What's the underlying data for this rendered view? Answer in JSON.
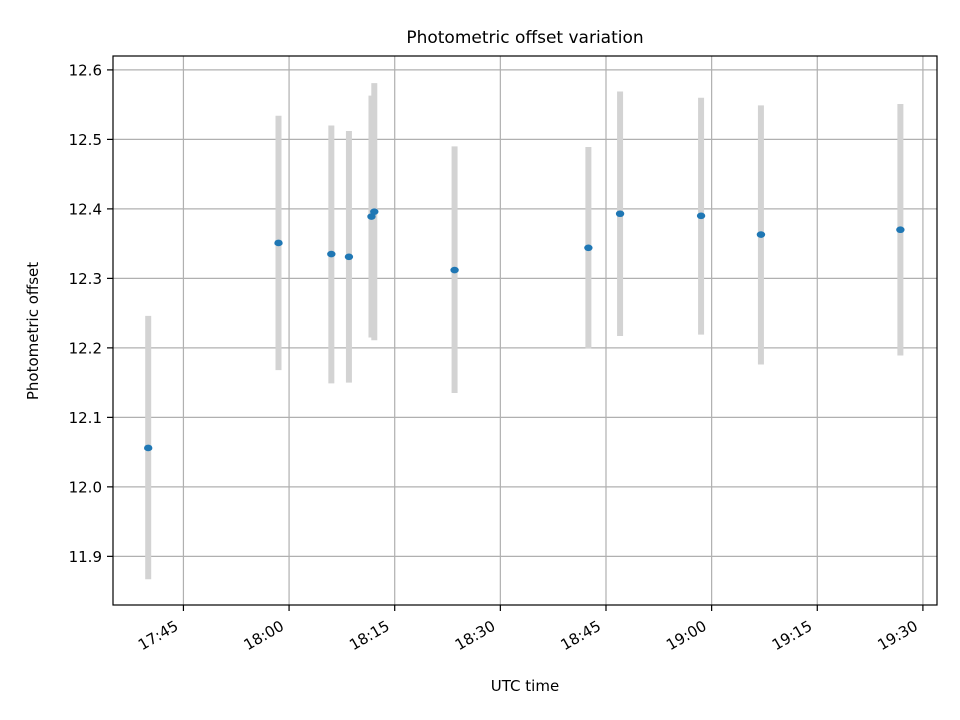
{
  "chart_data": {
    "type": "scatter",
    "title": "Photometric offset variation",
    "xlabel": "UTC time",
    "ylabel": "Photometric offset",
    "x_unit": "time of day (UTC)",
    "xlim": [
      "17:35",
      "19:32"
    ],
    "ylim": [
      11.83,
      12.62
    ],
    "xticks": [
      "17:45",
      "18:00",
      "18:15",
      "18:30",
      "18:45",
      "19:00",
      "19:15",
      "19:30"
    ],
    "yticks": [
      "11.9",
      "12.0",
      "12.1",
      "12.2",
      "12.3",
      "12.4",
      "12.5",
      "12.6"
    ],
    "grid": true,
    "points": [
      {
        "x": "17:40",
        "y": 12.056,
        "err_low": 11.867,
        "err_high": 12.246
      },
      {
        "x": "17:58.5",
        "y": 12.351,
        "err_low": 12.168,
        "err_high": 12.534
      },
      {
        "x": "18:06",
        "y": 12.335,
        "err_low": 12.149,
        "err_high": 12.52
      },
      {
        "x": "18:08.5",
        "y": 12.331,
        "err_low": 12.15,
        "err_high": 12.512
      },
      {
        "x": "18:11.7",
        "y": 12.389,
        "err_low": 12.215,
        "err_high": 12.563
      },
      {
        "x": "18:12.1",
        "y": 12.396,
        "err_low": 12.211,
        "err_high": 12.581
      },
      {
        "x": "18:23.5",
        "y": 12.312,
        "err_low": 12.135,
        "err_high": 12.49
      },
      {
        "x": "18:42.5",
        "y": 12.344,
        "err_low": 12.199,
        "err_high": 12.489
      },
      {
        "x": "18:47",
        "y": 12.393,
        "err_low": 12.217,
        "err_high": 12.569
      },
      {
        "x": "18:58.5",
        "y": 12.39,
        "err_low": 12.219,
        "err_high": 12.56
      },
      {
        "x": "19:07",
        "y": 12.363,
        "err_low": 12.176,
        "err_high": 12.549
      },
      {
        "x": "19:26.8",
        "y": 12.37,
        "err_low": 12.189,
        "err_high": 12.551
      }
    ],
    "colors": {
      "point": "#1f77b4",
      "errorbar": "#d3d3d3",
      "grid": "#b0b0b0",
      "axes": "#000000"
    }
  }
}
